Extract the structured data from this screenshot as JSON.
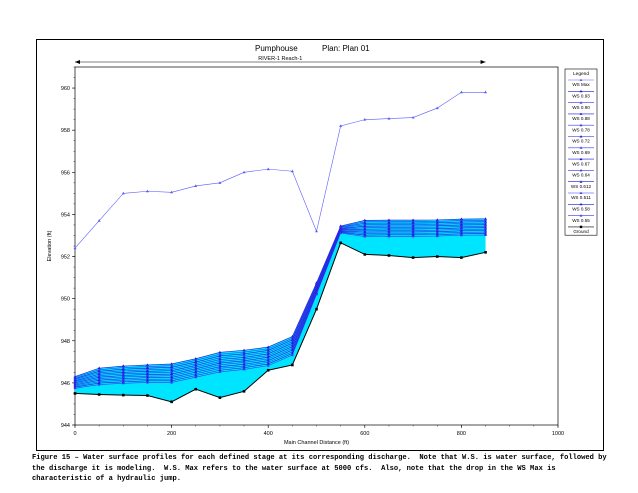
{
  "chart_data": {
    "type": "line",
    "title": "Pumphouse",
    "plan_label": "Plan: Plan 01",
    "reach_label": "RIVER-1 Reach-1",
    "xlabel": "Main Channel Distance (ft)",
    "ylabel": "Elevation (ft)",
    "xlim": [
      0,
      1000
    ],
    "ylim": [
      944,
      961
    ],
    "x_ticks": [
      0,
      200,
      400,
      600,
      800,
      1000
    ],
    "y_ticks": [
      944,
      946,
      948,
      950,
      952,
      954,
      956,
      958,
      960
    ],
    "grid": false,
    "legend_position": "right",
    "legend_title": "Legend",
    "x": [
      0,
      50,
      100,
      150,
      200,
      250,
      300,
      350,
      400,
      450,
      500,
      550,
      600,
      650,
      700,
      750,
      800,
      850
    ],
    "series": [
      {
        "name": "WS Max",
        "values": [
          952.4,
          953.7,
          955.0,
          955.1,
          955.05,
          955.35,
          955.5,
          956.0,
          956.15,
          956.05,
          953.2,
          958.2,
          958.5,
          958.55,
          958.6,
          959.05,
          959.8,
          959.8
        ]
      },
      {
        "name": "WS 0.93",
        "values": [
          946.3,
          946.7,
          946.8,
          946.85,
          946.9,
          947.15,
          947.45,
          947.55,
          947.7,
          948.2,
          950.75,
          953.45,
          953.72,
          953.73,
          953.73,
          953.74,
          953.78,
          953.79
        ]
      },
      {
        "name": "WS 0.90",
        "values": [
          946.25,
          946.62,
          946.73,
          946.77,
          946.82,
          947.07,
          947.36,
          947.46,
          947.62,
          948.12,
          950.7,
          953.42,
          953.65,
          953.66,
          953.66,
          953.67,
          953.71,
          953.72
        ]
      },
      {
        "name": "WS 0.88",
        "values": [
          946.2,
          946.55,
          946.65,
          946.7,
          946.74,
          946.99,
          947.28,
          947.38,
          947.54,
          948.04,
          950.65,
          953.39,
          953.58,
          953.59,
          953.59,
          953.6,
          953.64,
          953.65
        ]
      },
      {
        "name": "WS 0.78",
        "values": [
          946.15,
          946.48,
          946.58,
          946.62,
          946.66,
          946.91,
          947.19,
          947.3,
          947.46,
          947.96,
          950.6,
          953.36,
          953.51,
          953.52,
          953.52,
          953.53,
          953.57,
          953.58
        ]
      },
      {
        "name": "WS 0.72",
        "values": [
          946.1,
          946.41,
          946.5,
          946.55,
          946.58,
          946.83,
          947.11,
          947.21,
          947.38,
          947.88,
          950.55,
          953.33,
          953.44,
          953.45,
          953.45,
          953.46,
          953.5,
          953.51
        ]
      },
      {
        "name": "WS 0.69",
        "values": [
          946.05,
          946.34,
          946.43,
          946.47,
          946.5,
          946.75,
          947.02,
          947.13,
          947.3,
          947.8,
          950.5,
          953.3,
          953.37,
          953.38,
          953.38,
          953.39,
          953.43,
          953.44
        ]
      },
      {
        "name": "WS 0.67",
        "values": [
          946.0,
          946.27,
          946.35,
          946.4,
          946.42,
          946.67,
          946.94,
          947.05,
          947.22,
          947.72,
          950.45,
          953.27,
          953.3,
          953.31,
          953.31,
          953.32,
          953.36,
          953.37
        ]
      },
      {
        "name": "WS 0.64",
        "values": [
          945.95,
          946.2,
          946.28,
          946.32,
          946.34,
          946.59,
          946.86,
          946.97,
          947.14,
          947.64,
          950.4,
          953.24,
          953.23,
          953.24,
          953.24,
          953.25,
          953.29,
          953.3
        ]
      },
      {
        "name": "WS 0.612",
        "values": [
          945.9,
          946.13,
          946.2,
          946.25,
          946.26,
          946.51,
          946.77,
          946.88,
          947.06,
          947.56,
          950.35,
          953.21,
          953.16,
          953.17,
          953.17,
          953.18,
          953.22,
          953.23
        ]
      },
      {
        "name": "WS 0.511",
        "values": [
          945.85,
          946.06,
          946.13,
          946.17,
          946.18,
          946.43,
          946.69,
          946.8,
          946.98,
          947.48,
          950.3,
          953.18,
          953.09,
          953.1,
          953.1,
          953.11,
          953.15,
          953.16
        ]
      },
      {
        "name": "WS 0.58",
        "values": [
          945.8,
          945.99,
          946.05,
          946.1,
          946.1,
          946.35,
          946.6,
          946.72,
          946.9,
          947.4,
          950.25,
          953.15,
          953.02,
          953.03,
          953.03,
          953.04,
          953.08,
          953.09
        ]
      },
      {
        "name": "WS 0.55",
        "values": [
          945.75,
          945.92,
          945.98,
          946.02,
          946.02,
          946.27,
          946.52,
          946.64,
          946.82,
          947.32,
          950.2,
          953.12,
          952.95,
          952.96,
          952.96,
          952.97,
          953.01,
          953.02
        ]
      },
      {
        "name": "Ground",
        "values": [
          945.5,
          945.45,
          945.42,
          945.4,
          945.1,
          945.7,
          945.3,
          945.6,
          946.6,
          946.85,
          949.5,
          952.65,
          952.1,
          952.05,
          951.95,
          952.0,
          951.95,
          952.2
        ]
      }
    ]
  },
  "caption": "Figure 15 – Water surface profiles for each defined stage at its corresponding discharge.  Note that W.S. is water surface, followed by the discharge it is modeling.  W.S. Max refers to the water surface at 5000 cfs.  Also, note that the drop in the WS Max is characteristic of a hydraulic jump."
}
